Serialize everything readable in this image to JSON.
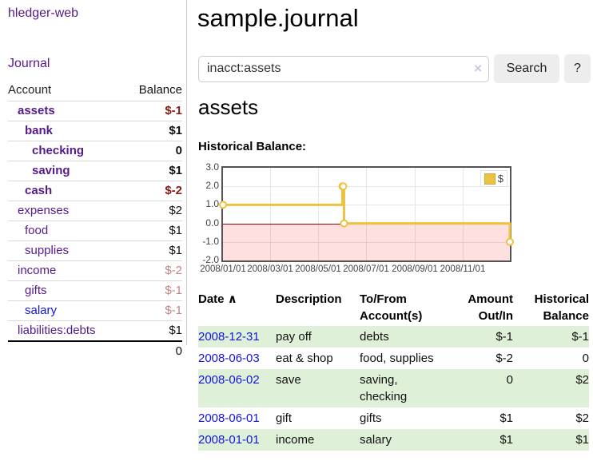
{
  "sidebar": {
    "brand": "hledger-web",
    "nav_journal": "Journal",
    "table": {
      "headers": {
        "account": "Account",
        "balance": "Balance"
      },
      "rows": [
        {
          "account": "assets",
          "balance": "$-1",
          "depth": 1,
          "bold": true,
          "balance_style": "negative-strong"
        },
        {
          "account": "bank",
          "balance": "$1",
          "depth": 2,
          "bold": true
        },
        {
          "account": "checking",
          "balance": "0",
          "depth": 3,
          "bold": true
        },
        {
          "account": "saving",
          "balance": "$1",
          "depth": 3,
          "bold": true
        },
        {
          "account": "cash",
          "balance": "$-2",
          "depth": 2,
          "bold": true,
          "balance_style": "negative-strong"
        },
        {
          "account": "expenses",
          "balance": "$2",
          "depth": 1
        },
        {
          "account": "food",
          "balance": "$1",
          "depth": 2
        },
        {
          "account": "supplies",
          "balance": "$1",
          "depth": 2
        },
        {
          "account": "income",
          "balance": "$-2",
          "depth": 1,
          "balance_style": "negative-soft"
        },
        {
          "account": "gifts",
          "balance": "$-1",
          "depth": 2,
          "balance_style": "negative-soft"
        },
        {
          "account": "salary",
          "balance": "$-1",
          "depth": 2,
          "balance_style": "negative-soft",
          "link_style": "unvisited"
        },
        {
          "account": "liabilities:debts",
          "balance": "$1",
          "depth": 1
        }
      ],
      "total": "0"
    }
  },
  "main": {
    "title": "sample.journal",
    "search": {
      "value": "inacct:assets",
      "clear_icon": "×",
      "button": "Search",
      "help": "?"
    },
    "account_heading": "assets"
  },
  "chart_data": {
    "type": "line",
    "steps": true,
    "title": "Historical Balance:",
    "series": [
      {
        "name": "$",
        "color": "#edc240",
        "points": [
          [
            "2008-01-01",
            1
          ],
          [
            "2008-06-01",
            2
          ],
          [
            "2008-06-02",
            2
          ],
          [
            "2008-06-03",
            0
          ],
          [
            "2008-12-31",
            -1
          ]
        ]
      }
    ],
    "xlim": [
      "2008-01-01",
      "2008-12-31"
    ],
    "ylim": [
      -2,
      3
    ],
    "y_ticks": [
      {
        "v": 3,
        "label": "3.0"
      },
      {
        "v": 2,
        "label": "2.0"
      },
      {
        "v": 1,
        "label": "1.0"
      },
      {
        "v": 0,
        "label": "0.0"
      },
      {
        "v": -1,
        "label": "-1.0"
      },
      {
        "v": -2,
        "label": "-2.0"
      }
    ],
    "x_ticks": [
      {
        "date": "2008-01-01",
        "label": "2008/01/01"
      },
      {
        "date": "2008-03-01",
        "label": "2008/03/01"
      },
      {
        "date": "2008-05-01",
        "label": "2008/05/01"
      },
      {
        "date": "2008-07-01",
        "label": "2008/07/01"
      },
      {
        "date": "2008-09-01",
        "label": "2008/09/01"
      },
      {
        "date": "2008-11-01",
        "label": "2008/11/01"
      }
    ],
    "legend_position": "top-right",
    "grid": true,
    "negative_region_fill": "rgba(255,0,0,0.12)",
    "zero_line_color": "#8b0000"
  },
  "register": {
    "headers": {
      "date": "Date",
      "sort_icon": "∧",
      "description": "Description",
      "account": "To/From Account(s)",
      "amount": "Amount Out/In",
      "balance": "Historical Balance"
    },
    "rows": [
      {
        "date": "2008-12-31",
        "description": "pay off",
        "accounts": "debts",
        "amount": "$-1",
        "balance": "$-1",
        "amount_negative": true,
        "balance_negative": true,
        "highlight": true
      },
      {
        "date": "2008-06-03",
        "description": "eat & shop",
        "accounts": "food, supplies",
        "amount": "$-2",
        "balance": "0",
        "amount_negative": true
      },
      {
        "date": "2008-06-02",
        "description": "save",
        "accounts": "saving, checking",
        "amount": "0",
        "balance": "$2",
        "highlight": true
      },
      {
        "date": "2008-06-01",
        "description": "gift",
        "accounts": "gifts",
        "amount": "$1",
        "balance": "$2"
      },
      {
        "date": "2008-01-01",
        "description": "income",
        "accounts": "salary",
        "amount": "$1",
        "balance": "$1",
        "highlight": true
      }
    ]
  },
  "colors": {
    "link_visited_purple": "#551a8b",
    "link_unvisited_blue": "#1414e0",
    "negative_strong": "#8b1a10",
    "negative_soft": "#c08583",
    "row_highlight_green": "#dff0d8",
    "chart_line_yellow": "#edc240"
  }
}
